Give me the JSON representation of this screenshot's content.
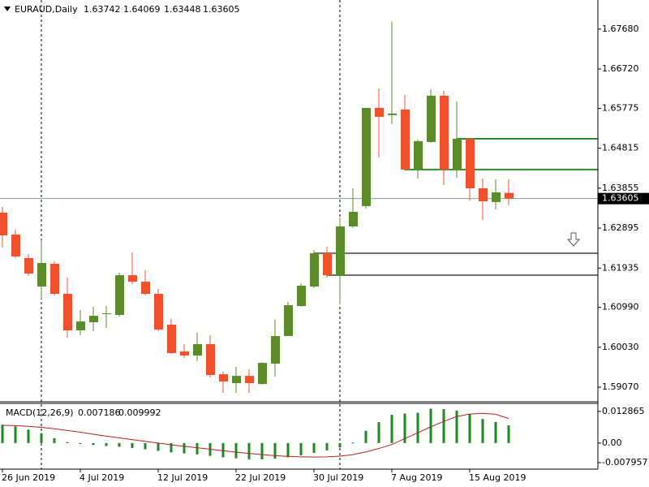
{
  "chart_data": [
    {
      "type": "candlestick",
      "title": "EURAUD,Daily",
      "categories": [
        "26 Jun 2019",
        null,
        null,
        null,
        null,
        null,
        "4 Jul 2019",
        null,
        null,
        null,
        null,
        null,
        "12 Jul 2019",
        null,
        null,
        null,
        null,
        null,
        "22 Jul 2019",
        null,
        null,
        null,
        null,
        null,
        "30 Jul 2019",
        null,
        null,
        null,
        null,
        null,
        "7 Aug 2019",
        null,
        null,
        null,
        null,
        null,
        "15 Aug 2019",
        null,
        null,
        null
      ],
      "open": [
        1.63268,
        1.62741,
        1.62174,
        1.61491,
        1.62038,
        1.61315,
        1.60437,
        1.60632,
        1.60827,
        1.60808,
        1.61764,
        1.61608,
        1.61315,
        1.60573,
        1.59929,
        1.59831,
        1.60105,
        1.59382,
        1.59168,
        1.59343,
        1.59148,
        1.59636,
        1.603,
        1.61022,
        1.61491,
        1.62292,
        1.61764,
        1.62936,
        1.63424,
        1.65786,
        1.65611,
        1.65747,
        1.64303,
        1.64966,
        1.66079,
        1.64283,
        1.65044,
        1.63853,
        1.63522,
        1.63742
      ],
      "high": [
        1.63404,
        1.62858,
        1.62272,
        1.62604,
        1.62096,
        1.61706,
        1.60925,
        1.61003,
        1.61022,
        1.61823,
        1.62311,
        1.61881,
        1.61432,
        1.6071,
        1.60105,
        1.60378,
        1.6032,
        1.59441,
        1.59558,
        1.595,
        1.59675,
        1.60691,
        1.6112,
        1.61569,
        1.6237,
        1.62448,
        1.63151,
        1.63853,
        1.65786,
        1.66255,
        1.67856,
        1.66099,
        1.65025,
        1.66235,
        1.66196,
        1.65942,
        1.65064,
        1.64088,
        1.64068,
        1.64069
      ],
      "low": [
        1.62428,
        1.62174,
        1.61745,
        1.61198,
        1.61276,
        1.60261,
        1.6032,
        1.60417,
        1.60495,
        1.60769,
        1.6155,
        1.61276,
        1.60417,
        1.59871,
        1.59773,
        1.59695,
        1.59304,
        1.58933,
        1.58933,
        1.58933,
        1.59129,
        1.59324,
        1.603,
        1.61003,
        1.61452,
        1.61706,
        1.61061,
        1.62897,
        1.63365,
        1.64595,
        1.65396,
        1.64283,
        1.64088,
        1.64947,
        1.63932,
        1.64107,
        1.63561,
        1.63092,
        1.63346,
        1.63448
      ],
      "close": [
        1.62721,
        1.62213,
        1.61803,
        1.62057,
        1.61315,
        1.60437,
        1.60651,
        1.60788,
        1.60847,
        1.61764,
        1.61608,
        1.61315,
        1.60456,
        1.5989,
        1.59831,
        1.60105,
        1.59363,
        1.59207,
        1.59343,
        1.59168,
        1.59656,
        1.603,
        1.61042,
        1.61511,
        1.62292,
        1.61764,
        1.62936,
        1.63287,
        1.65786,
        1.65572,
        1.6565,
        1.64303,
        1.64986,
        1.66079,
        1.64303,
        1.65044,
        1.63853,
        1.63541,
        1.63756,
        1.63605
      ],
      "up_color": "#5b8c2a",
      "down_color": "#f0502a",
      "ylim": [
        1.5872,
        1.6838
      ],
      "yticks": [
        {
          "value": 1.6768,
          "label": "1.67680"
        },
        {
          "value": 1.6672,
          "label": "1.66720"
        },
        {
          "value": 1.65775,
          "label": "1.65775"
        },
        {
          "value": 1.64815,
          "label": "1.64815"
        },
        {
          "value": 1.63855,
          "label": "1.63855"
        },
        {
          "value": 1.62895,
          "label": "1.62895"
        },
        {
          "value": 1.61935,
          "label": "1.61935"
        },
        {
          "value": 1.6099,
          "label": "1.60990"
        },
        {
          "value": 1.6003,
          "label": "1.60030"
        },
        {
          "value": 1.5907,
          "label": "1.59070"
        }
      ],
      "levels": [
        {
          "value": 1.65044,
          "start": 35,
          "color": "#2e8b2e"
        },
        {
          "value": 1.64303,
          "start": 31,
          "color": "#2e8b2e"
        },
        {
          "value": 1.62292,
          "start": 24,
          "color": "#707070"
        },
        {
          "value": 1.61764,
          "start": 25,
          "color": "#707070"
        }
      ]
    },
    {
      "type": "macd",
      "title": "MACD(12,26,9)",
      "series": [
        {
          "type": "bar",
          "color": "#1f8a1f",
          "values": [
            0.0075,
            0.0068,
            0.0055,
            0.004,
            0.002,
            0.0004,
            -0.0004,
            -0.0008,
            -0.0012,
            -0.0015,
            -0.002,
            -0.0025,
            -0.0032,
            -0.0038,
            -0.0042,
            -0.0046,
            -0.0052,
            -0.0058,
            -0.0062,
            -0.0066,
            -0.0066,
            -0.0063,
            -0.0058,
            -0.005,
            -0.004,
            -0.003,
            -0.0018,
            0.0002,
            0.005,
            0.0085,
            0.0115,
            0.012,
            0.0123,
            0.014,
            0.0138,
            0.0132,
            0.0118,
            0.0098,
            0.0086,
            0.007186
          ]
        },
        {
          "type": "line",
          "color": "#b22222",
          "values": [
            0.0072,
            0.0071,
            0.0068,
            0.0064,
            0.0058,
            0.0051,
            0.0044,
            0.0036,
            0.0028,
            0.0021,
            0.0014,
            0.0007,
            0.0,
            -0.0007,
            -0.0013,
            -0.0019,
            -0.0025,
            -0.0031,
            -0.0037,
            -0.0042,
            -0.0047,
            -0.0051,
            -0.0054,
            -0.0056,
            -0.0057,
            -0.0056,
            -0.0053,
            -0.0047,
            -0.0036,
            -0.0022,
            -0.0006,
            0.0018,
            0.0042,
            0.0066,
            0.0088,
            0.0108,
            0.0118,
            0.0121,
            0.0117,
            0.009992
          ]
        }
      ],
      "ylim": [
        -0.0106,
        0.0158
      ],
      "yticks": [
        0.012865,
        {
          "value": 0,
          "label": "0.00"
        },
        -0.007957
      ]
    }
  ]
}
